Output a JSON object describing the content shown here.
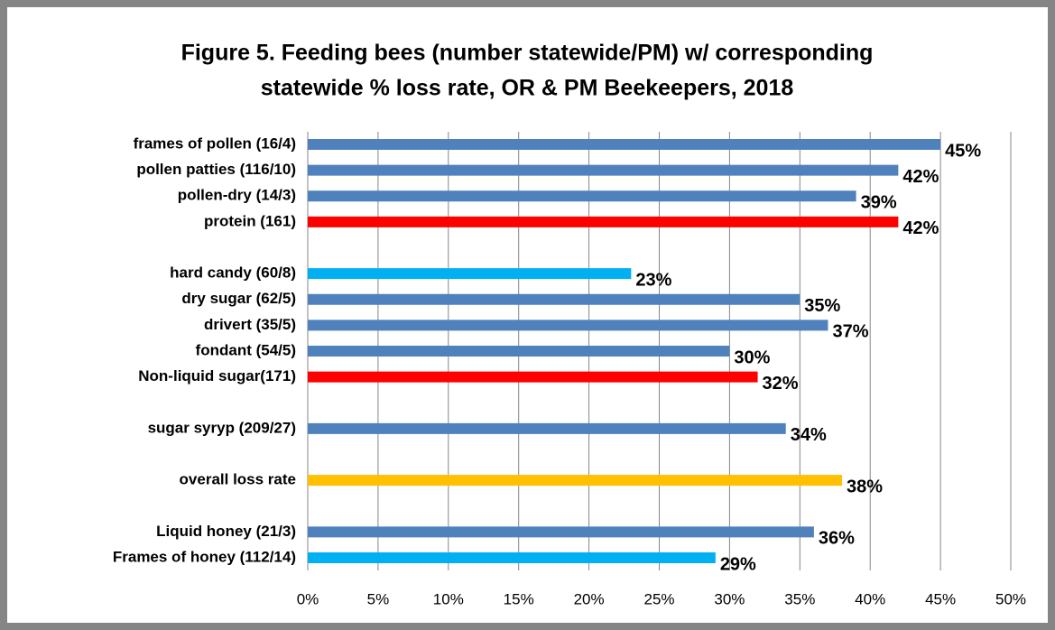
{
  "chart_data": {
    "type": "barh",
    "title": [
      "Figure 5. Feeding bees (number statewide/PM) w/ corresponding",
      "statewide % loss rate, OR & PM Beekeepers, 2018"
    ],
    "categories": [
      "frames of pollen (16/4)",
      "pollen patties (116/10)",
      "pollen-dry (14/3)",
      "protein (161)",
      null,
      "hard candy (60/8)",
      "dry sugar (62/5)",
      "drivert (35/5)",
      "fondant (54/5)",
      "Non-liquid sugar(171)",
      null,
      "sugar syryp (209/27)",
      null,
      "overall loss rate",
      null,
      "Liquid honey (21/3)",
      "Frames of honey (112/14)"
    ],
    "values": [
      45,
      42,
      39,
      42,
      null,
      23,
      35,
      37,
      30,
      32,
      null,
      34,
      null,
      38,
      null,
      36,
      29
    ],
    "value_labels": [
      "45%",
      "42%",
      "39%",
      "42%",
      null,
      "23%",
      "35%",
      "37%",
      "30%",
      "32%",
      null,
      "34%",
      null,
      "38%",
      null,
      "36%",
      "29%"
    ],
    "colors": [
      "#4f81bd",
      "#4f81bd",
      "#4f81bd",
      "#ff0000",
      null,
      "#00b0f0",
      "#4f81bd",
      "#4f81bd",
      "#4f81bd",
      "#ff0000",
      null,
      "#4f81bd",
      null,
      "#ffc000",
      null,
      "#4f81bd",
      "#00b0f0"
    ],
    "xlim": [
      0,
      50
    ],
    "xticks": [
      {
        "value": 0,
        "label": "0%"
      },
      {
        "value": 5,
        "label": "5%"
      },
      {
        "value": 10,
        "label": "10%"
      },
      {
        "value": 15,
        "label": "15%"
      },
      {
        "value": 20,
        "label": "20%"
      },
      {
        "value": 25,
        "label": "25%"
      },
      {
        "value": 30,
        "label": "30%"
      },
      {
        "value": 35,
        "label": "35%"
      },
      {
        "value": 40,
        "label": "40%"
      },
      {
        "value": 45,
        "label": "45%"
      },
      {
        "value": 50,
        "label": "50%"
      }
    ],
    "grid": true
  }
}
